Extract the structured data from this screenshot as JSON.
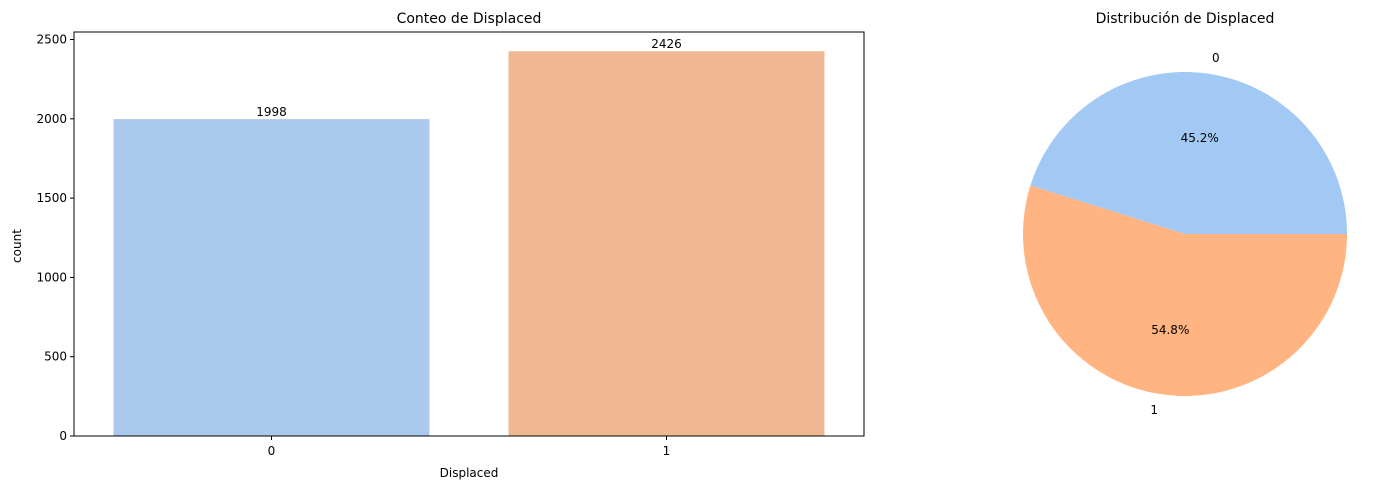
{
  "chart_data": [
    {
      "type": "bar",
      "title": "Conteo de Displaced",
      "xlabel": "Displaced",
      "ylabel": "count",
      "categories": [
        "0",
        "1"
      ],
      "values": [
        1998,
        2426
      ],
      "data_labels": [
        "1998",
        "2426"
      ],
      "ylim": [
        0,
        2547.3
      ],
      "yticks": [
        0,
        500,
        1000,
        1500,
        2000,
        2500
      ],
      "ytick_labels": [
        "0",
        "500",
        "1000",
        "1500",
        "2000",
        "2500"
      ],
      "colors": [
        "#abc9ec",
        "#f0b892"
      ],
      "grid": false,
      "legend": "none"
    },
    {
      "type": "pie",
      "title": "Distribución de Displaced",
      "labels": [
        "0",
        "1"
      ],
      "values": [
        1998,
        2426
      ],
      "percent_labels": [
        "45.2%",
        "54.8%"
      ],
      "colors": [
        "#a1c9f4",
        "#ffb482"
      ],
      "legend": "none"
    }
  ]
}
